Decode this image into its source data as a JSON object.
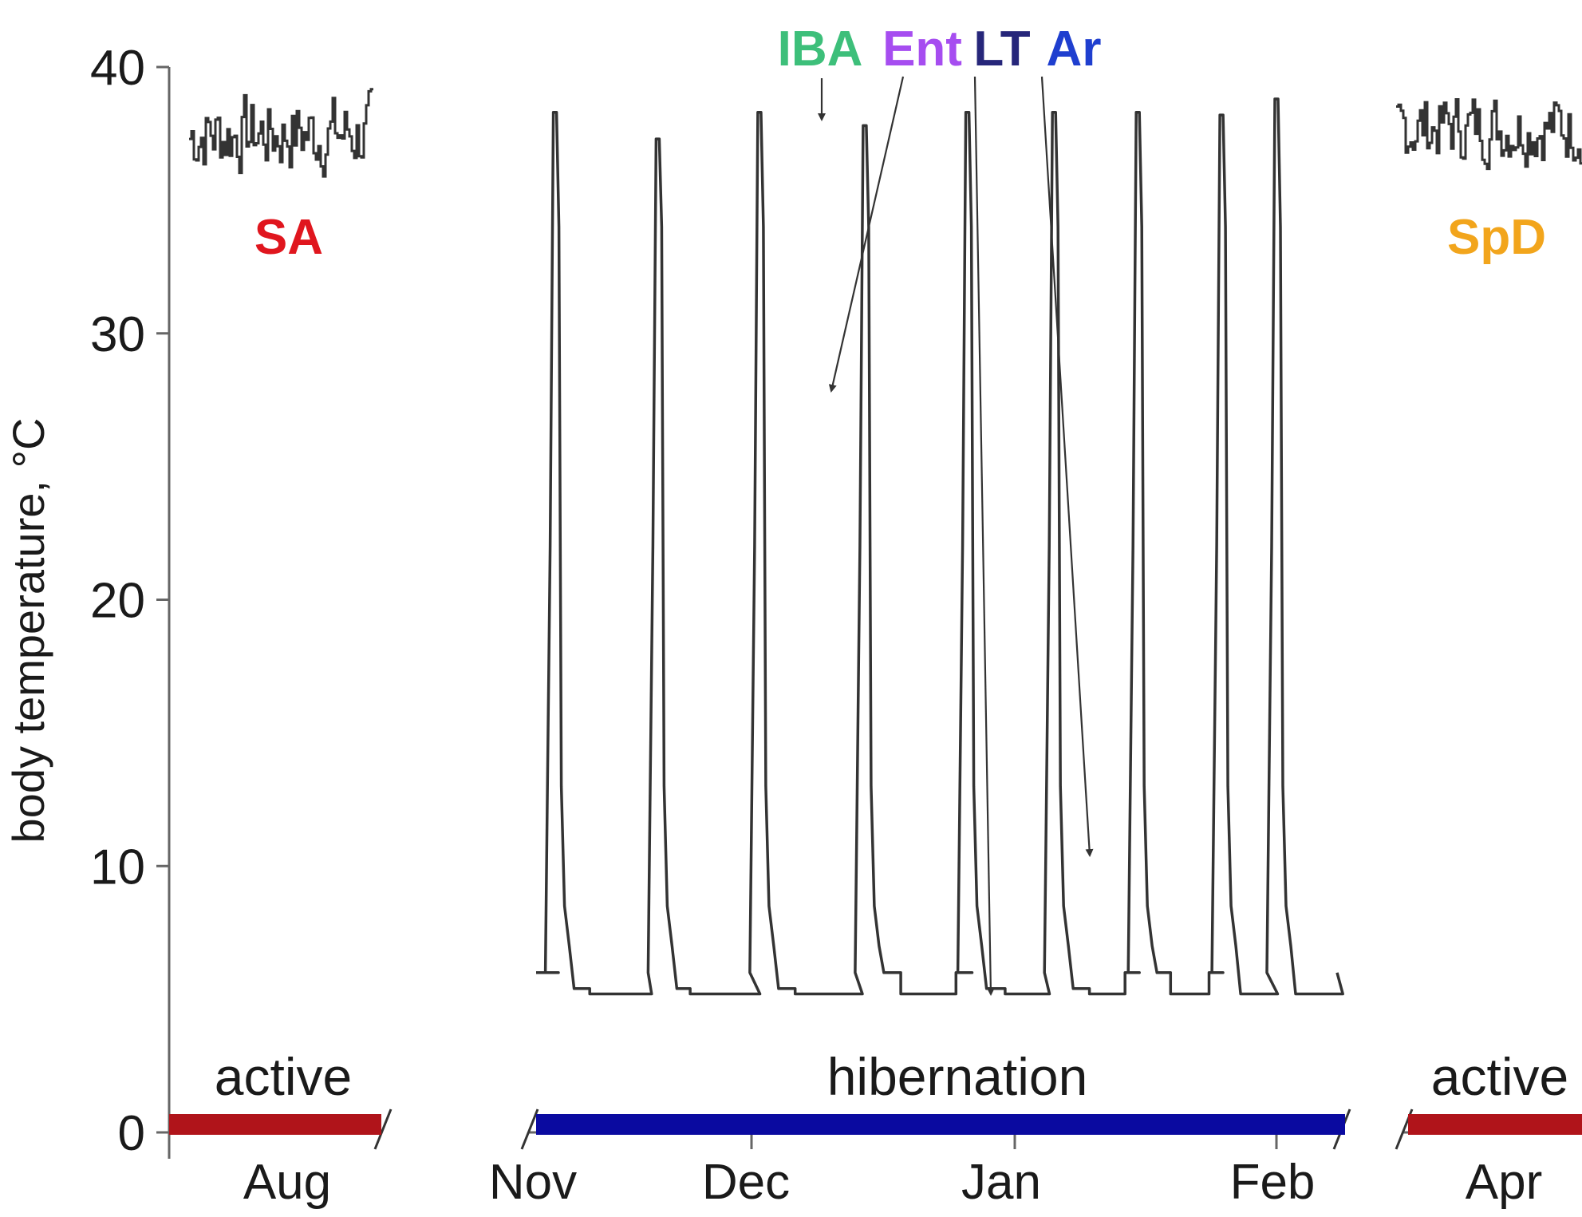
{
  "chart_data": {
    "type": "line",
    "title": "",
    "xlabel": "",
    "ylabel": "body temperature, °C",
    "ylim": [
      0,
      40
    ],
    "yticks": [
      0,
      10,
      20,
      30,
      40
    ],
    "grid": false,
    "month_labels": [
      "Aug",
      "Nov",
      "Dec",
      "Jan",
      "Feb",
      "Apr"
    ],
    "phases": [
      {
        "label": "active",
        "color": "#b0141a"
      },
      {
        "label": "hibernation",
        "color": "#0a0aa0"
      },
      {
        "label": "active",
        "color": "#b0141a"
      }
    ],
    "state_labels": [
      {
        "text": "SA",
        "color": "#e0161e"
      },
      {
        "text": "IBA",
        "color": "#3dbf7a"
      },
      {
        "text": "Ent",
        "color": "#a64df0"
      },
      {
        "text": "LT",
        "color": "#26267a"
      },
      {
        "text": "Ar",
        "color": "#1f3fcf"
      },
      {
        "text": "SpD",
        "color": "#f2a51c"
      }
    ],
    "series": [
      {
        "segment": "summer active (Aug)",
        "baseline": 37,
        "range": [
          35.5,
          39.5
        ]
      },
      {
        "segment": "hibernation (Nov–Feb)",
        "torpor_temp": 6,
        "min_temp": 5.2,
        "arousal_peaks": [
          {
            "month": "Nov",
            "fraction": 0.12,
            "peak": 38.3
          },
          {
            "month": "Nov",
            "fraction": 0.58,
            "peak": 37.3
          },
          {
            "month": "Dec",
            "fraction": 0.03,
            "peak": 38.3
          },
          {
            "month": "Dec",
            "fraction": 0.43,
            "peak": 37.8
          },
          {
            "month": "Dec",
            "fraction": 0.82,
            "peak": 38.3
          },
          {
            "month": "Jan",
            "fraction": 0.15,
            "peak": 38.3
          },
          {
            "month": "Jan",
            "fraction": 0.47,
            "peak": 38.3
          },
          {
            "month": "Jan",
            "fraction": 0.79,
            "peak": 38.2
          },
          {
            "month": "Feb",
            "fraction": 0.0,
            "peak": 38.8
          }
        ]
      },
      {
        "segment": "spring active (Apr)",
        "baseline": 37.6,
        "range": [
          36,
          39.5
        ]
      }
    ]
  }
}
